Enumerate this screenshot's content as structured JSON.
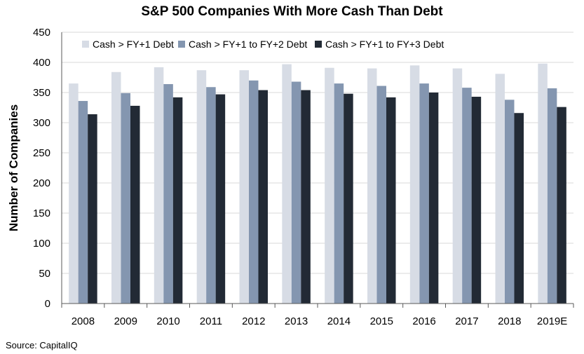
{
  "chart_data": {
    "type": "bar",
    "title": "S&P 500 Companies With More Cash Than Debt",
    "xlabel": "",
    "ylabel": "Number of Companies",
    "ylim": [
      0,
      450
    ],
    "yticks": [
      0,
      50,
      100,
      150,
      200,
      250,
      300,
      350,
      400,
      450
    ],
    "grid": true,
    "legend_position": "top-left",
    "categories": [
      "2008",
      "2009",
      "2010",
      "2011",
      "2012",
      "2013",
      "2014",
      "2015",
      "2016",
      "2017",
      "2018",
      "2019E"
    ],
    "series": [
      {
        "name": "Cash > FY+1 Debt",
        "color": "#d7dce5",
        "values": [
          365,
          384,
          392,
          387,
          387,
          397,
          391,
          390,
          395,
          390,
          381,
          398
        ]
      },
      {
        "name": "Cash > FY+1 to FY+2 Debt",
        "color": "#8496b0",
        "values": [
          336,
          349,
          364,
          359,
          370,
          368,
          365,
          361,
          365,
          358,
          338,
          357
        ]
      },
      {
        "name": "Cash > FY+1 to FY+3 Debt",
        "color": "#222a35",
        "values": [
          314,
          328,
          342,
          347,
          354,
          354,
          348,
          342,
          350,
          343,
          316,
          326
        ]
      }
    ]
  },
  "source": "Source: CapitalIQ"
}
